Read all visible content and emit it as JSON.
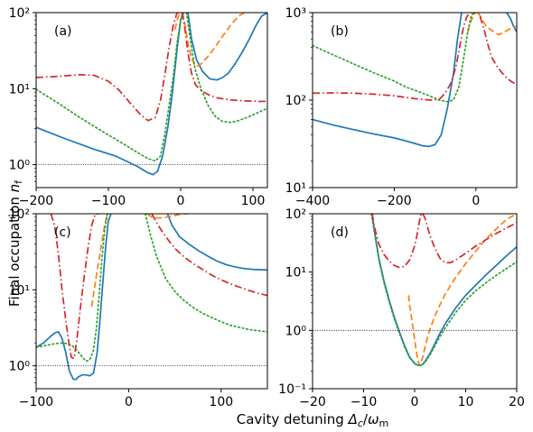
{
  "figure": {
    "ylabel": "Final occupation",
    "ylabel_symbol": "n",
    "ylabel_sub": "f",
    "xlabel": "Cavity detuning",
    "xlabel_symbol": "Δ",
    "xlabel_sub_c": "c",
    "xlabel_slash": "/",
    "xlabel_omega": "ω",
    "xlabel_sub_m": "m"
  },
  "colors": {
    "blue": "#1f77b4",
    "orange": "#ff7f0e",
    "green": "#2ca02c",
    "red": "#d62728",
    "reference": "#000000"
  },
  "chart_data": [
    {
      "panel_label": "(a)",
      "type": "line",
      "log_y": true,
      "xlim": [
        -200,
        120
      ],
      "ylim": [
        0.5,
        100
      ],
      "xticks": [
        -200,
        -100,
        0,
        100
      ],
      "xtick_labels": [
        "−200",
        "−100",
        "0",
        "100"
      ],
      "yticks": [
        1,
        10,
        100
      ],
      "ytick_labels": [
        "10⁰",
        "10¹",
        "10²"
      ],
      "reference_line": 1,
      "series": [
        {
          "color": "blue",
          "dash": "solid",
          "x": [
            -200,
            -160,
            -120,
            -90,
            -60,
            -45,
            -38,
            -32,
            -25,
            -18,
            -12,
            -8,
            -4,
            0,
            3
          ],
          "y": [
            3.1,
            2.2,
            1.6,
            1.3,
            0.95,
            0.78,
            0.74,
            0.82,
            1.3,
            3,
            8,
            18,
            40,
            80,
            100
          ]
        },
        {
          "color": "blue",
          "dash": "solid",
          "x": [
            10,
            15,
            22,
            30,
            40,
            50,
            58,
            66,
            75,
            85,
            95,
            105,
            112,
            120
          ],
          "y": [
            100,
            45,
            24,
            17,
            13.5,
            13,
            14,
            16,
            21,
            30,
            45,
            70,
            90,
            100
          ]
        },
        {
          "color": "orange",
          "dash": "dashed",
          "x": [
            -8,
            -4,
            -1
          ],
          "y": [
            60,
            85,
            100
          ]
        },
        {
          "color": "orange",
          "dash": "dashed",
          "x": [
            2,
            5,
            10,
            15,
            20,
            25,
            30,
            40,
            50,
            60,
            70,
            80,
            88
          ],
          "y": [
            100,
            80,
            40,
            25,
            20,
            20,
            22,
            28,
            38,
            52,
            70,
            90,
            100
          ]
        },
        {
          "color": "green",
          "dash": "dotted",
          "x": [
            -200,
            -170,
            -140,
            -110,
            -80,
            -60,
            -45,
            -35,
            -28,
            -22,
            -16,
            -10,
            -5,
            0,
            4
          ],
          "y": [
            9.8,
            6.5,
            4.2,
            2.8,
            1.9,
            1.45,
            1.2,
            1.12,
            1.3,
            2.5,
            6,
            15,
            40,
            80,
            100
          ]
        },
        {
          "color": "green",
          "dash": "dotted",
          "x": [
            8,
            14,
            20,
            28,
            38,
            48,
            58,
            70,
            80,
            95,
            110,
            120
          ],
          "y": [
            100,
            40,
            18,
            10,
            6,
            4.3,
            3.7,
            3.6,
            3.8,
            4.3,
            5,
            5.5
          ]
        },
        {
          "color": "red",
          "dash": "dashdot",
          "x": [
            -200,
            -170,
            -140,
            -120,
            -100,
            -85,
            -70,
            -55,
            -45,
            -35,
            -28,
            -22,
            -16,
            -10,
            -5,
            -2
          ],
          "y": [
            14,
            14.5,
            15.3,
            15,
            12.5,
            9.5,
            6.5,
            4.5,
            3.8,
            4.2,
            7,
            15,
            35,
            70,
            100,
            100
          ]
        },
        {
          "color": "red",
          "dash": "dashdot",
          "x": [
            2,
            6,
            10,
            15,
            20,
            25,
            30,
            40,
            50,
            60,
            70,
            80,
            90,
            100,
            110,
            120
          ],
          "y": [
            100,
            60,
            30,
            16,
            11.5,
            10,
            9.2,
            8.2,
            7.6,
            7.3,
            7.1,
            7,
            6.9,
            6.85,
            6.8,
            6.8
          ]
        }
      ]
    },
    {
      "panel_label": "(b)",
      "type": "line",
      "log_y": true,
      "xlim": [
        -400,
        100
      ],
      "ylim": [
        10,
        1000
      ],
      "xticks": [
        -400,
        -200,
        0
      ],
      "xtick_labels": [
        "−400",
        "−200",
        "0"
      ],
      "yticks": [
        10,
        100,
        1000
      ],
      "ytick_labels": [
        "10¹",
        "10²",
        "10³"
      ],
      "series": [
        {
          "color": "blue",
          "dash": "solid",
          "x": [
            -400,
            -350,
            -300,
            -250,
            -200,
            -170,
            -150,
            -130,
            -115,
            -100,
            -85,
            -70,
            -55,
            -45,
            -35
          ],
          "y": [
            60,
            52,
            46,
            41,
            37,
            34,
            32,
            30,
            29.5,
            31,
            40,
            80,
            200,
            500,
            1000
          ]
        },
        {
          "color": "blue",
          "dash": "solid",
          "x": [
            75,
            85,
            92,
            100
          ],
          "y": [
            1000,
            850,
            700,
            600
          ]
        },
        {
          "color": "orange",
          "dash": "dashed",
          "x": [
            -20,
            -12,
            -5,
            0
          ],
          "y": [
            600,
            800,
            950,
            1000
          ]
        },
        {
          "color": "orange",
          "dash": "dashed",
          "x": [
            5,
            15,
            25,
            40,
            55,
            70,
            85,
            100
          ],
          "y": [
            1000,
            850,
            700,
            620,
            560,
            600,
            660,
            700
          ]
        },
        {
          "color": "green",
          "dash": "dotted",
          "x": [
            -400,
            -350,
            -300,
            -250,
            -200,
            -170,
            -140,
            -110,
            -90,
            -70,
            -55,
            -42,
            -30,
            -20,
            -12,
            -5
          ],
          "y": [
            420,
            330,
            260,
            205,
            165,
            140,
            125,
            110,
            100,
            96,
            100,
            140,
            300,
            600,
            900,
            1000
          ]
        },
        {
          "color": "red",
          "dash": "dashdot",
          "x": [
            -400,
            -350,
            -300,
            -250,
            -200,
            -150,
            -110,
            -90,
            -75,
            -60,
            -48,
            -38,
            -30,
            -22,
            -15,
            -10
          ],
          "y": [
            120,
            121,
            120,
            117,
            112,
            104,
            100,
            102,
            120,
            160,
            250,
            450,
            700,
            900,
            1000,
            1000
          ]
        },
        {
          "color": "red",
          "dash": "dashdot",
          "x": [
            10,
            20,
            30,
            40,
            55,
            70,
            85,
            100
          ],
          "y": [
            900,
            650,
            420,
            300,
            230,
            190,
            165,
            150
          ]
        }
      ]
    },
    {
      "panel_label": "(c)",
      "type": "line",
      "log_y": true,
      "xlim": [
        -100,
        150
      ],
      "ylim": [
        0.5,
        100
      ],
      "xticks": [
        -100,
        0,
        100
      ],
      "xtick_labels": [
        "−100",
        "0",
        "100"
      ],
      "yticks": [
        1,
        10,
        100
      ],
      "ytick_labels": [
        "10⁰",
        "10¹",
        "10²"
      ],
      "reference_line": 1,
      "series": [
        {
          "color": "blue",
          "dash": "solid",
          "x": [
            -100,
            -92,
            -85,
            -80,
            -76,
            -72,
            -68,
            -64,
            -60,
            -57,
            -54,
            -50,
            -46,
            -42,
            -38,
            -34,
            -31,
            -28,
            -25,
            -22,
            -19
          ],
          "y": [
            1.75,
            2.0,
            2.4,
            2.7,
            2.8,
            2.3,
            1.5,
            0.85,
            0.67,
            0.66,
            0.72,
            0.76,
            0.76,
            0.74,
            0.8,
            1.5,
            4,
            12,
            35,
            80,
            100
          ]
        },
        {
          "color": "blue",
          "dash": "solid",
          "x": [
            42,
            47,
            55,
            65,
            75,
            85,
            95,
            105,
            115,
            125,
            135,
            150
          ],
          "y": [
            100,
            70,
            50,
            40,
            33,
            28,
            24,
            21.5,
            20,
            19,
            18.5,
            18.2
          ]
        },
        {
          "color": "orange",
          "dash": "dashed",
          "x": [
            -40,
            -35,
            -30,
            -26,
            -23
          ],
          "y": [
            6,
            15,
            35,
            70,
            100
          ]
        },
        {
          "color": "orange",
          "dash": "dashed",
          "x": [
            20,
            25,
            32,
            40,
            50,
            58,
            65
          ],
          "y": [
            100,
            90,
            88,
            90,
            95,
            100,
            100
          ]
        },
        {
          "color": "green",
          "dash": "dotted",
          "x": [
            -100,
            -90,
            -80,
            -72,
            -66,
            -60,
            -55,
            -50,
            -46,
            -42,
            -38,
            -35,
            -32,
            -29,
            -26,
            -23
          ],
          "y": [
            1.75,
            1.85,
            1.95,
            2.0,
            1.95,
            1.8,
            1.55,
            1.3,
            1.15,
            1.2,
            1.6,
            3,
            8,
            25,
            60,
            100
          ]
        },
        {
          "color": "green",
          "dash": "dotted",
          "x": [
            18,
            24,
            30,
            40,
            50,
            60,
            70,
            80,
            90,
            100,
            110,
            120,
            130,
            150
          ],
          "y": [
            100,
            50,
            28,
            14,
            9.5,
            7.2,
            5.8,
            4.9,
            4.3,
            3.8,
            3.4,
            3.2,
            3.0,
            2.8
          ]
        },
        {
          "color": "red",
          "dash": "dashdot",
          "x": [
            -84,
            -80,
            -76,
            -72,
            -68,
            -64,
            -62,
            -59,
            -56,
            -52,
            -48,
            -44,
            -40,
            -36,
            -32
          ],
          "y": [
            100,
            70,
            30,
            10,
            4,
            1.8,
            1.3,
            1.25,
            2.2,
            6,
            15,
            35,
            70,
            100,
            100
          ]
        },
        {
          "color": "red",
          "dash": "dashdot",
          "x": [
            25,
            32,
            40,
            50,
            60,
            70,
            80,
            90,
            100,
            110,
            120,
            130,
            140,
            150
          ],
          "y": [
            100,
            70,
            50,
            35,
            27,
            22,
            18.5,
            15.5,
            13.5,
            12,
            10.8,
            9.8,
            9,
            8.4
          ]
        }
      ]
    },
    {
      "panel_label": "(d)",
      "type": "line",
      "log_y": true,
      "xlim": [
        -20,
        20
      ],
      "ylim": [
        0.1,
        100
      ],
      "xticks": [
        -20,
        -10,
        0,
        10,
        20
      ],
      "xtick_labels": [
        "−20",
        "−10",
        "0",
        "10",
        "20"
      ],
      "yticks": [
        0.1,
        1,
        10,
        100
      ],
      "ytick_labels": [
        "10⁻¹",
        "10⁰",
        "10¹",
        "10²"
      ],
      "reference_line": 1,
      "series": [
        {
          "color": "blue",
          "dash": "solid",
          "x": [
            -8.3,
            -8,
            -7,
            -6,
            -5,
            -4,
            -3,
            -2,
            -1,
            0,
            0.5,
            1,
            1.5,
            2,
            3,
            4,
            5,
            6,
            8,
            10,
            12,
            14,
            16,
            18,
            20
          ],
          "y": [
            100,
            60,
            17,
            7,
            3.3,
            1.7,
            0.95,
            0.55,
            0.35,
            0.27,
            0.255,
            0.25,
            0.26,
            0.29,
            0.4,
            0.6,
            0.9,
            1.3,
            2.4,
            4,
            6,
            9,
            13,
            19,
            27
          ]
        },
        {
          "color": "orange",
          "dash": "dashed",
          "x": [
            -1.2,
            -1,
            -0.5,
            0,
            0.3,
            0.6,
            0.8,
            1,
            1.2,
            1.5,
            2,
            2.5,
            3,
            4,
            5,
            6,
            8,
            10,
            12,
            14,
            16,
            18,
            20
          ],
          "y": [
            4,
            2.8,
            1.4,
            0.7,
            0.45,
            0.32,
            0.27,
            0.25,
            0.27,
            0.33,
            0.5,
            0.75,
            1.05,
            1.8,
            2.8,
            4.2,
            8,
            14,
            23,
            37,
            55,
            80,
            100
          ]
        },
        {
          "color": "green",
          "dash": "dotted",
          "x": [
            -8.5,
            -8,
            -7,
            -6,
            -5,
            -4,
            -3,
            -2,
            -1,
            0,
            0.5,
            1,
            1.5,
            2,
            3,
            4,
            5,
            6,
            8,
            10,
            12,
            14,
            16,
            18,
            20
          ],
          "y": [
            100,
            55,
            16,
            6.5,
            3.1,
            1.6,
            0.9,
            0.53,
            0.34,
            0.27,
            0.255,
            0.25,
            0.26,
            0.28,
            0.38,
            0.55,
            0.8,
            1.1,
            2.0,
            3.3,
            4.8,
            6.6,
            8.8,
            11.5,
            15
          ]
        },
        {
          "color": "red",
          "dash": "dashdot",
          "x": [
            -8.3,
            -8,
            -7,
            -6,
            -5,
            -4,
            -3,
            -2,
            -1,
            0,
            0.5,
            1,
            1.3
          ],
          "y": [
            100,
            65,
            30,
            20,
            15.5,
            13,
            12,
            12.5,
            16,
            28,
            45,
            80,
            100
          ]
        },
        {
          "color": "red",
          "dash": "dashdot",
          "x": [
            1.6,
            2,
            2.5,
            3,
            4,
            5,
            6,
            7,
            8,
            10,
            12,
            14,
            16,
            18,
            20
          ],
          "y": [
            100,
            85,
            60,
            42,
            25,
            17,
            14.5,
            14.5,
            16,
            21,
            28,
            36,
            46,
            57,
            70
          ]
        }
      ]
    }
  ]
}
